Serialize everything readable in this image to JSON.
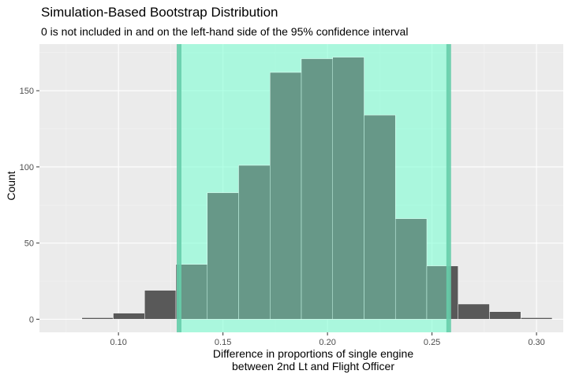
{
  "chart_data": {
    "type": "bar",
    "title": "Simulation-Based Bootstrap Distribution",
    "subtitle": "0 is not included in and on the left-hand side of the 95% confidence interval",
    "xlabel_lines": [
      "Difference in proportions of single engine",
      "between 2nd Lt and Flight Officer"
    ],
    "ylabel": "Count",
    "xlim": [
      0.0622,
      0.3128
    ],
    "ylim": [
      -8.6,
      180.6
    ],
    "x_ticks": [
      0.1,
      0.15,
      0.2,
      0.25,
      0.3
    ],
    "x_tick_labels": [
      "0.10",
      "0.15",
      "0.20",
      "0.25",
      "0.30"
    ],
    "y_ticks": [
      0,
      50,
      100,
      150
    ],
    "y_tick_labels": [
      "0",
      "50",
      "100",
      "150"
    ],
    "bin_width": 0.015,
    "bins": [
      {
        "x0": 0.0825,
        "x1": 0.0975,
        "count": 1
      },
      {
        "x0": 0.0975,
        "x1": 0.1125,
        "count": 4
      },
      {
        "x0": 0.1125,
        "x1": 0.1275,
        "count": 19
      },
      {
        "x0": 0.1275,
        "x1": 0.1425,
        "count": 36
      },
      {
        "x0": 0.1425,
        "x1": 0.1575,
        "count": 83
      },
      {
        "x0": 0.1575,
        "x1": 0.1725,
        "count": 101
      },
      {
        "x0": 0.1725,
        "x1": 0.1875,
        "count": 162
      },
      {
        "x0": 0.1875,
        "x1": 0.2025,
        "count": 171
      },
      {
        "x0": 0.2025,
        "x1": 0.2175,
        "count": 172
      },
      {
        "x0": 0.2175,
        "x1": 0.2325,
        "count": 134
      },
      {
        "x0": 0.2325,
        "x1": 0.2475,
        "count": 66
      },
      {
        "x0": 0.2475,
        "x1": 0.2625,
        "count": 35
      },
      {
        "x0": 0.2625,
        "x1": 0.2775,
        "count": 10
      },
      {
        "x0": 0.2775,
        "x1": 0.2925,
        "count": 5
      },
      {
        "x0": 0.2925,
        "x1": 0.3075,
        "count": 1
      }
    ],
    "confidence_interval": {
      "level": "95%",
      "lower": 0.129,
      "upper": 0.258
    },
    "grid": true,
    "colors": {
      "bar": "#595959",
      "bar_outline": "#ffffff",
      "ci_fill": "#7fffd4",
      "ci_fill_opacity": 0.6,
      "ci_line": "#66cdaa",
      "panel_bg": "#ebebeb",
      "grid_major": "#ffffff",
      "grid_minor": "#f4f4f4"
    }
  }
}
